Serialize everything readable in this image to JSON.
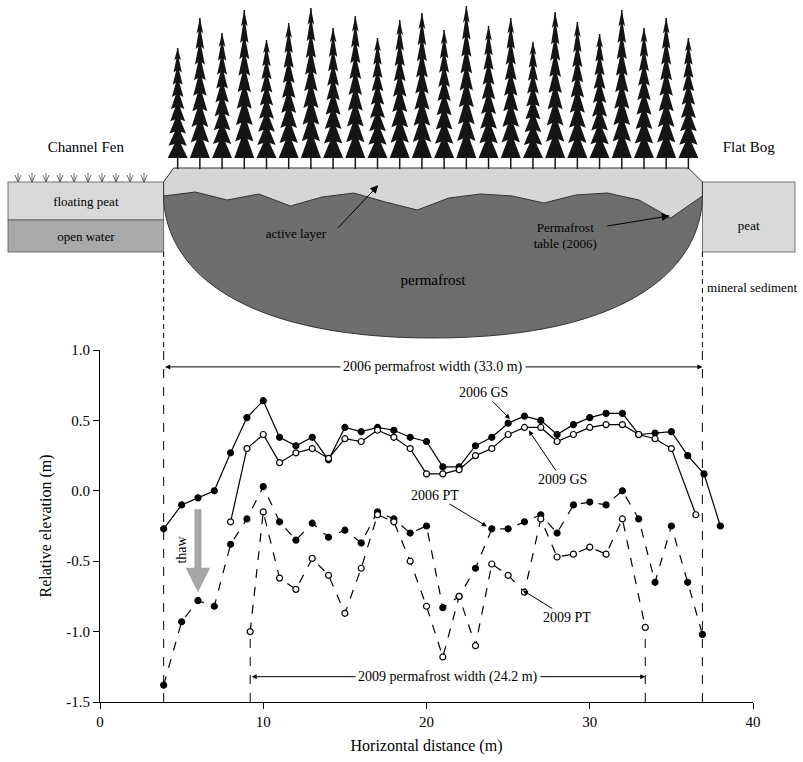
{
  "chart_data": {
    "type": "line",
    "x_label": "Horizontal distance (m)",
    "y_label": "Relative elevation (m)",
    "xlim": [
      0,
      40
    ],
    "xticks": [
      0,
      10,
      20,
      30,
      40
    ],
    "ylim": [
      -1.5,
      1
    ],
    "yticks": [
      -1.5,
      {
        "value": -1,
        "label": "-1.0"
      },
      -0.5,
      {
        "value": 0,
        "label": "0.0"
      },
      0.5,
      {
        "value": 1,
        "label": "1.0"
      }
    ],
    "grid": false,
    "series": [
      {
        "name": "2006 GS",
        "color": "#000000",
        "marker": "filled_circle",
        "line_style": "solid",
        "x": [
          3.9,
          5,
          6,
          7,
          8,
          9,
          10,
          11,
          12,
          13,
          14,
          15,
          16,
          17,
          18,
          19,
          20,
          21,
          22,
          23,
          24,
          25,
          26,
          27,
          28,
          29,
          30,
          31,
          32,
          33,
          34,
          35,
          36,
          37,
          38
        ],
        "values": [
          -0.27,
          -0.1,
          -0.05,
          0.0,
          0.27,
          0.52,
          0.64,
          0.38,
          0.32,
          0.38,
          0.22,
          0.45,
          0.42,
          0.45,
          0.43,
          0.38,
          0.35,
          0.17,
          0.17,
          0.32,
          0.38,
          0.48,
          0.53,
          0.5,
          0.4,
          0.47,
          0.52,
          0.55,
          0.55,
          0.4,
          0.41,
          0.42,
          0.25,
          0.12,
          -0.25
        ],
        "label": {
          "x": 23.5,
          "y": 0.7,
          "arrow_x": 25.2,
          "arrow_y": 0.5
        }
      },
      {
        "name": "2009 GS",
        "color": "#000000",
        "marker": "open_circle",
        "line_style": "solid",
        "x": [
          8,
          9,
          10,
          11,
          12,
          13,
          14,
          15,
          16,
          17,
          18,
          19,
          20,
          21,
          22,
          23,
          24,
          25,
          26,
          27,
          28,
          29,
          30,
          31,
          32,
          33,
          34,
          35,
          36.5
        ],
        "values": [
          -0.22,
          0.3,
          0.4,
          0.2,
          0.27,
          0.3,
          0.23,
          0.37,
          0.35,
          0.43,
          0.38,
          0.3,
          0.12,
          0.12,
          0.15,
          0.25,
          0.3,
          0.4,
          0.45,
          0.45,
          0.35,
          0.4,
          0.45,
          0.47,
          0.47,
          0.4,
          0.37,
          0.3,
          -0.17
        ],
        "label": {
          "x": 28.3,
          "y": 0.08,
          "arrow_x": 26.2,
          "arrow_y": 0.44
        }
      },
      {
        "name": "2006 PT",
        "color": "#000000",
        "marker": "filled_circle",
        "line_style": "dashed",
        "x": [
          3.9,
          5,
          6,
          7,
          8,
          9,
          10,
          11,
          12,
          13,
          14,
          15,
          16,
          17,
          18,
          19,
          20,
          21,
          22,
          23,
          24,
          25,
          26,
          27,
          28,
          29,
          30,
          31,
          32,
          33,
          34,
          35,
          36,
          36.9
        ],
        "values": [
          -1.38,
          -0.93,
          -0.78,
          -0.82,
          -0.38,
          -0.2,
          0.03,
          -0.22,
          -0.35,
          -0.23,
          -0.33,
          -0.28,
          -0.37,
          -0.15,
          -0.2,
          -0.3,
          -0.25,
          -0.83,
          -0.75,
          -0.55,
          -0.27,
          -0.27,
          -0.22,
          -0.17,
          -0.3,
          -0.1,
          -0.08,
          -0.1,
          0.0,
          -0.2,
          -0.65,
          -0.25,
          -0.65,
          -1.02
        ],
        "label": {
          "x": 20.5,
          "y": -0.03,
          "arrow_x": 23.8,
          "arrow_y": -0.26
        }
      },
      {
        "name": "2009 PT",
        "color": "#000000",
        "marker": "open_circle",
        "line_style": "dashed",
        "x": [
          9.2,
          10,
          11,
          12,
          13,
          14,
          15,
          16,
          17,
          18,
          19,
          20,
          21,
          22,
          23,
          24,
          25,
          26,
          27,
          28,
          29,
          30,
          31,
          32,
          33.4
        ],
        "values": [
          -1.0,
          -0.15,
          -0.62,
          -0.7,
          -0.48,
          -0.6,
          -0.87,
          -0.55,
          -0.17,
          -0.22,
          -0.5,
          -0.82,
          -1.18,
          -0.75,
          -1.1,
          -0.52,
          -0.6,
          -0.72,
          -0.2,
          -0.47,
          -0.45,
          -0.4,
          -0.45,
          -0.2,
          -0.97
        ],
        "label": {
          "x": 28.6,
          "y": -0.9,
          "arrow_x": 25.8,
          "arrow_y": -0.7
        }
      }
    ],
    "width_markers": [
      {
        "text": "2006 permafrost width (33.0 m)",
        "x0": 3.9,
        "x1": 36.9,
        "y": 0.88
      },
      {
        "text": "2009 permafrost width (24.2 m)",
        "x0": 9.2,
        "x1": 33.4,
        "y": -1.32
      }
    ],
    "annotations": [
      {
        "text": "thaw",
        "x": 5.0,
        "y": -0.42,
        "arrow": {
          "x0": 6,
          "y0": -0.12,
          "x1": 6,
          "y1": -0.72
        }
      }
    ]
  },
  "diagram": {
    "labels": {
      "channel_fen": "Channel Fen",
      "flat_bog": "Flat Bog",
      "floating_peat": "floating peat",
      "open_water": "open water",
      "active_layer": "active layer",
      "permafrost": "permafrost",
      "permafrost_table": "Permafrost table (2006)",
      "peat": "peat",
      "mineral_sediment": "mineral sediment"
    }
  }
}
